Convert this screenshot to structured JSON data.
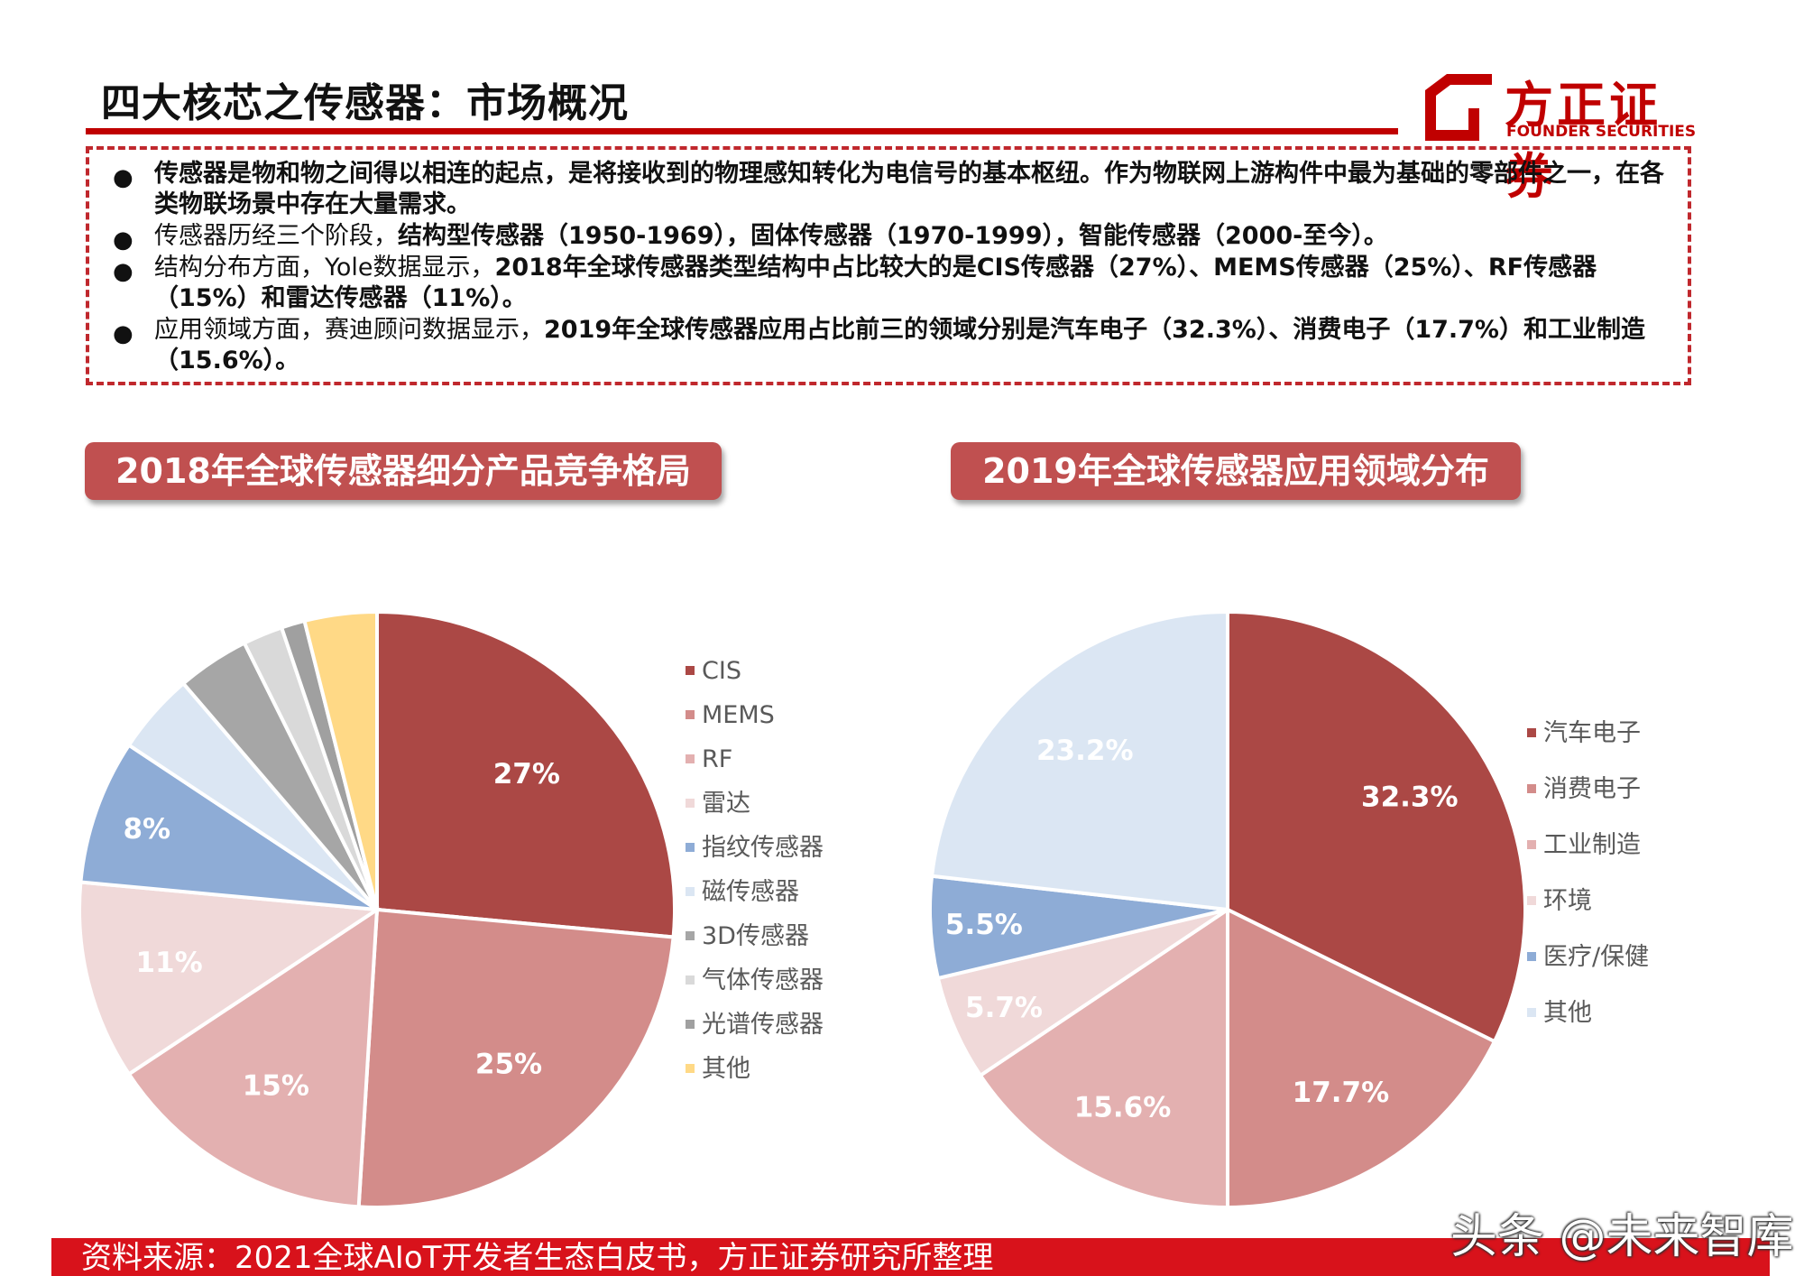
{
  "header": {
    "title": "四大核芯之传感器：市场概况",
    "logo_cn": "方正证券",
    "logo_en": "FOUNDER SECURITIES",
    "accent": "#c00000"
  },
  "summary": {
    "b1": "传感器是物和物之间得以相连的起点，是将接收到的物理感知转化为电信号的基本枢纽。作为物联网上游构件中最为基础的零部件之一，在各类物联场景中存在大量需求。",
    "b2_pre": "传感器历经三个阶段，",
    "b2_bold": "结构型传感器（1950-1969），固体传感器（1970-1999），智能传感器（2000-至今）。",
    "b3_pre": "结构分布方面，Yole数据显示，",
    "b3_bold": "2018年全球传感器类型结构中占比较大的是CIS传感器（27%）、MEMS传感器（25%）、RF传感器（15%）和雷达传感器（11%）。",
    "b4_pre": "应用领域方面，赛迪顾问数据显示，",
    "b4_bold": "2019年全球传感器应用占比前三的领域分别是汽车电子（32.3%）、消费电子（17.7%）和工业制造（15.6%）。"
  },
  "charts_titles": {
    "left": "2018年全球传感器细分产品竞争格局",
    "right": "2019年全球传感器应用领域分布"
  },
  "chart_data": [
    {
      "type": "pie",
      "title": "2018年全球传感器细分产品竞争格局",
      "categories": [
        "CIS",
        "MEMS",
        "RF",
        "雷达",
        "指纹传感器",
        "磁传感器",
        "3D传感器",
        "气体传感器",
        "光谱传感器",
        "其他"
      ],
      "values": [
        27,
        25,
        15,
        11,
        8,
        4.5,
        4,
        2.2,
        1.3,
        4
      ],
      "data_labels": [
        "27%",
        "25%",
        "15%",
        "11%",
        "8%",
        "",
        "",
        "",
        "",
        ""
      ],
      "colors": [
        "#ab4845",
        "#d38c8a",
        "#e3b0b0",
        "#f0d9d9",
        "#8eacd6",
        "#dbe6f3",
        "#a6a6a6",
        "#d9d9d9",
        "#a0a0a0",
        "#ffd986"
      ],
      "legend_position": "right"
    },
    {
      "type": "pie",
      "title": "2019年全球传感器应用领域分布",
      "categories": [
        "汽车电子",
        "消费电子",
        "工业制造",
        "环境",
        "医疗/保健",
        "其他"
      ],
      "values": [
        32.3,
        17.7,
        15.6,
        5.7,
        5.5,
        23.2
      ],
      "data_labels": [
        "32.3%",
        "17.7%",
        "15.6%",
        "5.7%",
        "5.5%",
        "23.2%"
      ],
      "colors": [
        "#ab4845",
        "#d38c8a",
        "#e3b0b0",
        "#f0d9d9",
        "#8eacd6",
        "#dbe6f3"
      ],
      "legend_position": "right"
    }
  ],
  "footer": {
    "source": "资料来源：2021全球AIoT开发者生态白皮书，方正证券研究所整理",
    "watermark": "头条 @未来智库"
  }
}
